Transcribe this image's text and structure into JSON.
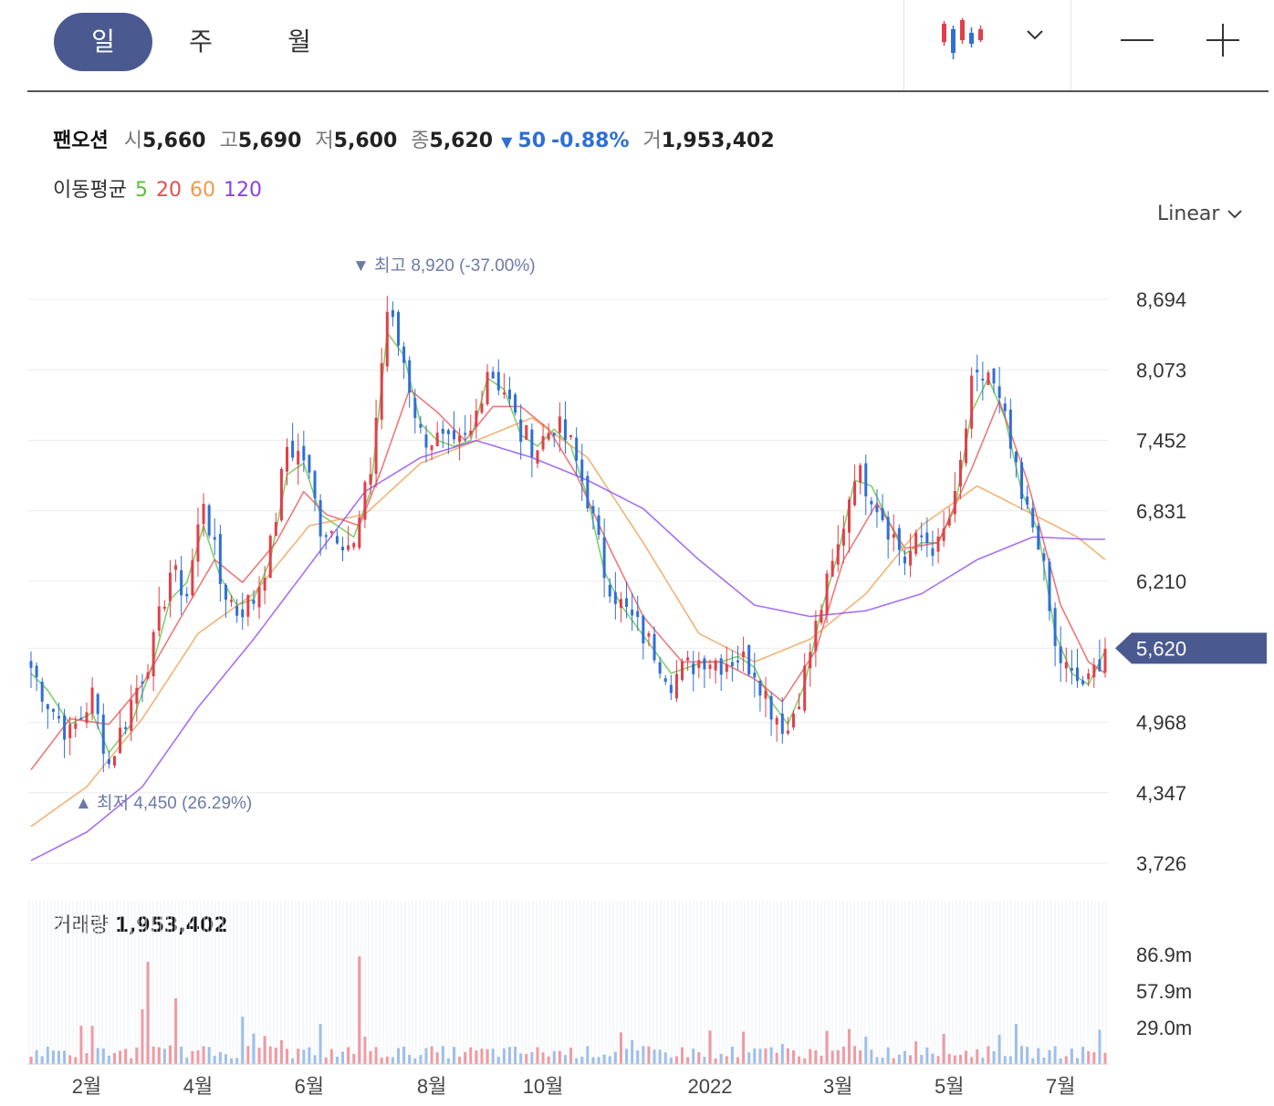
{
  "toolbar": {
    "tabs": [
      {
        "label": "일",
        "active": true
      },
      {
        "label": "주",
        "active": false
      },
      {
        "label": "월",
        "active": false
      }
    ],
    "chart_type_icon": "candlestick-icon",
    "dropdown_icon": "chevron-down-icon",
    "zoom_out_icon": "minus-icon",
    "zoom_in_icon": "plus-icon"
  },
  "quote": {
    "name": "팬오션",
    "open_label": "시",
    "open": "5,660",
    "high_label": "고",
    "high": "5,690",
    "low_label": "저",
    "low": "5,600",
    "close_label": "종",
    "close": "5,620",
    "change_arrow": "▼",
    "change": "50",
    "change_pct": "-0.88%",
    "volume_label": "거",
    "volume": "1,953,402"
  },
  "moving_average": {
    "label": "이동평균",
    "periods": [
      {
        "label": "5",
        "color": "#5cbf3a"
      },
      {
        "label": "20",
        "color": "#e84c4c"
      },
      {
        "label": "60",
        "color": "#ee9a4a"
      },
      {
        "label": "120",
        "color": "#8a3ff0"
      }
    ]
  },
  "scale": {
    "label": "Linear",
    "icon": "chevron-down-icon"
  },
  "volume_panel": {
    "label": "거래량",
    "value": "1,953,402",
    "ticks": [
      "86.9m",
      "57.9m",
      "29.0m"
    ]
  },
  "colors": {
    "up": "#e0404a",
    "down": "#2f6fd6",
    "price_tag": "#4a5a90",
    "annotation": "#6b7aa8"
  },
  "chart_data": {
    "type": "candlestick",
    "y_ticks": [
      8694,
      8073,
      7452,
      6831,
      6210,
      5620,
      4968,
      4347,
      3726
    ],
    "y_tick_labels": [
      "8,694",
      "8,073",
      "7,452",
      "6,831",
      "6,210",
      "5,620",
      "4,968",
      "4,347",
      "3,726"
    ],
    "x_ticks": [
      "2월",
      "4월",
      "6월",
      "8월",
      "10월",
      "2022",
      "3월",
      "5월",
      "7월"
    ],
    "current_price": 5620,
    "current_price_label": "5,620",
    "high_annotation": {
      "marker": "▼",
      "label": "최고",
      "value_text": "8,920 (-37.00%)",
      "value": 8920
    },
    "low_annotation": {
      "marker": "▲",
      "label": "최저",
      "value_text": "4,450 (26.29%)",
      "value": 4450
    },
    "price_path": [
      [
        0,
        5450
      ],
      [
        3,
        5150
      ],
      [
        7,
        4850
      ],
      [
        11,
        5200
      ],
      [
        14,
        4600
      ],
      [
        18,
        5150
      ],
      [
        22,
        5650
      ],
      [
        25,
        6300
      ],
      [
        28,
        6100
      ],
      [
        31,
        6950
      ],
      [
        34,
        6200
      ],
      [
        37,
        5950
      ],
      [
        40,
        6050
      ],
      [
        43,
        6500
      ],
      [
        46,
        7400
      ],
      [
        49,
        7300
      ],
      [
        52,
        6700
      ],
      [
        55,
        6650
      ],
      [
        58,
        6500
      ],
      [
        61,
        7200
      ],
      [
        64,
        8600
      ],
      [
        67,
        8150
      ],
      [
        70,
        7500
      ],
      [
        73,
        7450
      ],
      [
        76,
        7350
      ],
      [
        79,
        7500
      ],
      [
        82,
        8100
      ],
      [
        85,
        7900
      ],
      [
        88,
        7500
      ],
      [
        91,
        7400
      ],
      [
        94,
        7600
      ],
      [
        97,
        7400
      ],
      [
        100,
        6950
      ],
      [
        103,
        6300
      ],
      [
        106,
        6000
      ],
      [
        109,
        5800
      ],
      [
        112,
        5600
      ],
      [
        115,
        5350
      ],
      [
        118,
        5450
      ],
      [
        121,
        5550
      ],
      [
        124,
        5500
      ],
      [
        127,
        5550
      ],
      [
        130,
        5450
      ],
      [
        133,
        5100
      ],
      [
        136,
        4900
      ],
      [
        139,
        5400
      ],
      [
        142,
        6000
      ],
      [
        145,
        6500
      ],
      [
        148,
        7200
      ],
      [
        151,
        7000
      ],
      [
        154,
        6700
      ],
      [
        157,
        6400
      ],
      [
        160,
        6600
      ],
      [
        163,
        6500
      ],
      [
        166,
        6900
      ],
      [
        169,
        7900
      ],
      [
        172,
        8050
      ],
      [
        175,
        7600
      ],
      [
        178,
        6900
      ],
      [
        181,
        6600
      ],
      [
        184,
        5600
      ],
      [
        187,
        5350
      ],
      [
        190,
        5300
      ],
      [
        193,
        5650
      ]
    ],
    "ma_series": [
      {
        "name": "5",
        "points": [
          [
            0,
            5400
          ],
          [
            3,
            5250
          ],
          [
            7,
            4950
          ],
          [
            11,
            5050
          ],
          [
            14,
            4700
          ],
          [
            18,
            4950
          ],
          [
            22,
            5500
          ],
          [
            25,
            6050
          ],
          [
            28,
            6200
          ],
          [
            31,
            6700
          ],
          [
            34,
            6250
          ],
          [
            37,
            6000
          ],
          [
            40,
            6050
          ],
          [
            43,
            6400
          ],
          [
            46,
            7150
          ],
          [
            49,
            7250
          ],
          [
            52,
            6800
          ],
          [
            55,
            6700
          ],
          [
            58,
            6600
          ],
          [
            61,
            7000
          ],
          [
            64,
            8400
          ],
          [
            67,
            8200
          ],
          [
            70,
            7600
          ],
          [
            73,
            7450
          ],
          [
            76,
            7400
          ],
          [
            79,
            7450
          ],
          [
            82,
            8000
          ],
          [
            85,
            7900
          ],
          [
            88,
            7500
          ],
          [
            91,
            7400
          ],
          [
            94,
            7550
          ],
          [
            97,
            7400
          ],
          [
            100,
            6950
          ],
          [
            103,
            6300
          ],
          [
            106,
            6000
          ],
          [
            109,
            5800
          ],
          [
            112,
            5600
          ],
          [
            115,
            5400
          ],
          [
            118,
            5450
          ],
          [
            121,
            5500
          ],
          [
            124,
            5500
          ],
          [
            127,
            5550
          ],
          [
            130,
            5450
          ],
          [
            133,
            5150
          ],
          [
            136,
            4950
          ],
          [
            139,
            5300
          ],
          [
            142,
            5950
          ],
          [
            145,
            6450
          ],
          [
            148,
            7100
          ],
          [
            151,
            7050
          ],
          [
            154,
            6750
          ],
          [
            157,
            6450
          ],
          [
            160,
            6550
          ],
          [
            163,
            6550
          ],
          [
            166,
            6850
          ],
          [
            169,
            7700
          ],
          [
            172,
            8000
          ],
          [
            175,
            7650
          ],
          [
            178,
            7000
          ],
          [
            181,
            6650
          ],
          [
            184,
            5750
          ],
          [
            187,
            5400
          ],
          [
            190,
            5300
          ],
          [
            193,
            5600
          ]
        ]
      },
      {
        "name": "20",
        "points": [
          [
            0,
            4550
          ],
          [
            7,
            5000
          ],
          [
            14,
            4950
          ],
          [
            20,
            5300
          ],
          [
            27,
            5900
          ],
          [
            33,
            6400
          ],
          [
            38,
            6200
          ],
          [
            44,
            6550
          ],
          [
            49,
            7000
          ],
          [
            53,
            6800
          ],
          [
            59,
            6700
          ],
          [
            63,
            7200
          ],
          [
            68,
            7900
          ],
          [
            73,
            7700
          ],
          [
            78,
            7450
          ],
          [
            83,
            7750
          ],
          [
            88,
            7750
          ],
          [
            93,
            7550
          ],
          [
            98,
            7150
          ],
          [
            104,
            6500
          ],
          [
            110,
            5900
          ],
          [
            117,
            5500
          ],
          [
            124,
            5500
          ],
          [
            130,
            5350
          ],
          [
            135,
            5150
          ],
          [
            141,
            5600
          ],
          [
            146,
            6400
          ],
          [
            152,
            6900
          ],
          [
            157,
            6500
          ],
          [
            163,
            6550
          ],
          [
            169,
            7200
          ],
          [
            174,
            7800
          ],
          [
            179,
            7100
          ],
          [
            185,
            6000
          ],
          [
            190,
            5500
          ],
          [
            193,
            5400
          ]
        ]
      },
      {
        "name": "60",
        "points": [
          [
            0,
            4050
          ],
          [
            10,
            4400
          ],
          [
            20,
            5000
          ],
          [
            30,
            5750
          ],
          [
            40,
            6100
          ],
          [
            50,
            6700
          ],
          [
            60,
            6800
          ],
          [
            70,
            7250
          ],
          [
            80,
            7450
          ],
          [
            90,
            7650
          ],
          [
            100,
            7300
          ],
          [
            110,
            6550
          ],
          [
            120,
            5750
          ],
          [
            130,
            5500
          ],
          [
            140,
            5700
          ],
          [
            150,
            6100
          ],
          [
            160,
            6700
          ],
          [
            170,
            7050
          ],
          [
            180,
            6800
          ],
          [
            188,
            6600
          ],
          [
            193,
            6400
          ]
        ]
      },
      {
        "name": "120",
        "points": [
          [
            0,
            3750
          ],
          [
            10,
            4000
          ],
          [
            20,
            4400
          ],
          [
            30,
            5100
          ],
          [
            40,
            5700
          ],
          [
            50,
            6350
          ],
          [
            60,
            7000
          ],
          [
            70,
            7300
          ],
          [
            80,
            7450
          ],
          [
            90,
            7300
          ],
          [
            100,
            7100
          ],
          [
            110,
            6850
          ],
          [
            120,
            6400
          ],
          [
            130,
            6000
          ],
          [
            140,
            5900
          ],
          [
            150,
            5950
          ],
          [
            160,
            6100
          ],
          [
            170,
            6400
          ],
          [
            180,
            6600
          ],
          [
            190,
            6580
          ],
          [
            193,
            6580
          ]
        ]
      }
    ]
  }
}
